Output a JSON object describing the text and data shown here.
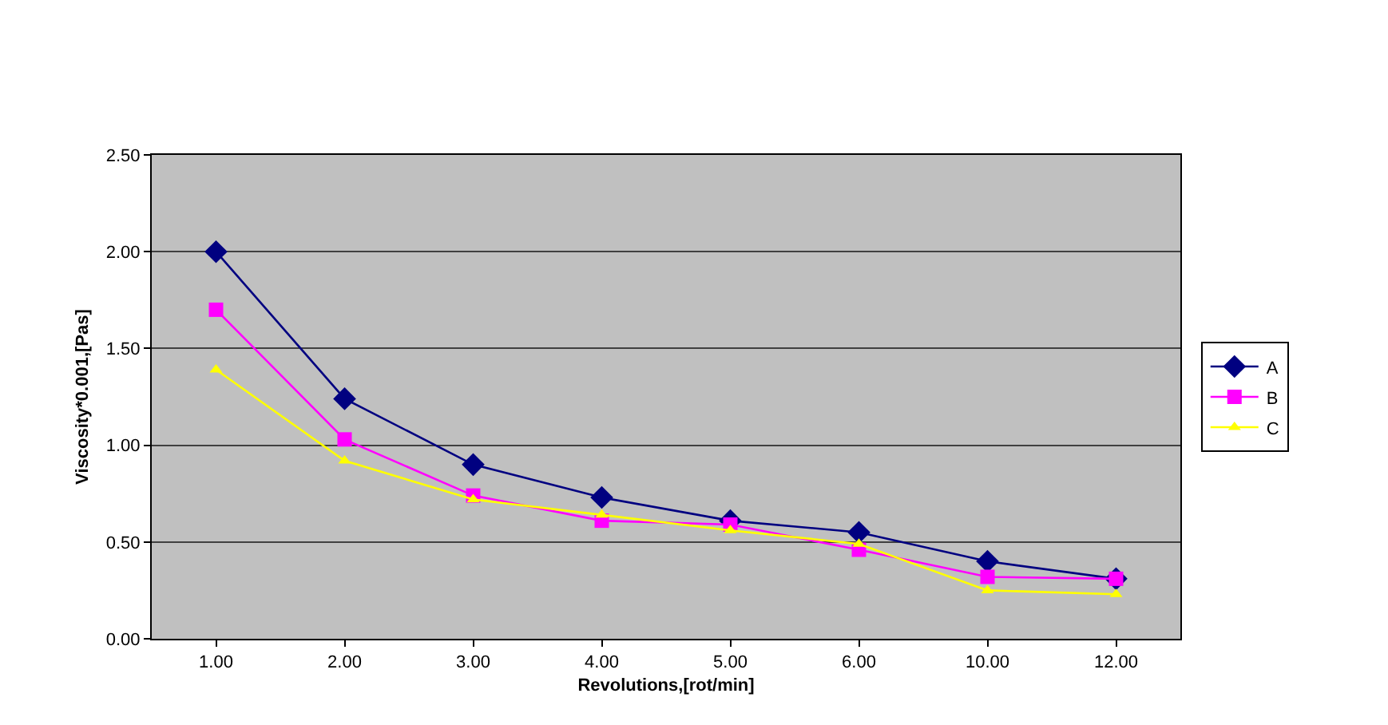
{
  "chart_data": {
    "type": "line",
    "xlabel": "Revolutions,[rot/min]",
    "ylabel": "Viscosity*0.001,[Pas]",
    "categories": [
      "1.00",
      "2.00",
      "3.00",
      "4.00",
      "5.00",
      "6.00",
      "10.00",
      "12.00"
    ],
    "series": [
      {
        "name": "A",
        "color": "#000080",
        "marker": "diamond",
        "values": [
          2.0,
          1.24,
          0.9,
          0.73,
          0.61,
          0.55,
          0.4,
          0.31
        ]
      },
      {
        "name": "B",
        "color": "#ff00ff",
        "marker": "square",
        "values": [
          1.7,
          1.03,
          0.74,
          0.61,
          0.59,
          0.46,
          0.32,
          0.31
        ]
      },
      {
        "name": "C",
        "color": "#ffff00",
        "marker": "triangle",
        "values": [
          1.39,
          0.92,
          0.72,
          0.64,
          0.56,
          0.49,
          0.25,
          0.23
        ]
      }
    ],
    "ylim": [
      0,
      2.5
    ],
    "yticks": [
      {
        "value": 0,
        "label": "0.00"
      },
      {
        "value": 0.5,
        "label": "0.50"
      },
      {
        "value": 1.0,
        "label": "1.00"
      },
      {
        "value": 1.5,
        "label": "1.50"
      },
      {
        "value": 2.0,
        "label": "2.00"
      },
      {
        "value": 2.5,
        "label": "2.50"
      }
    ],
    "grid": "y",
    "legend": "right",
    "line_style": "solid"
  }
}
